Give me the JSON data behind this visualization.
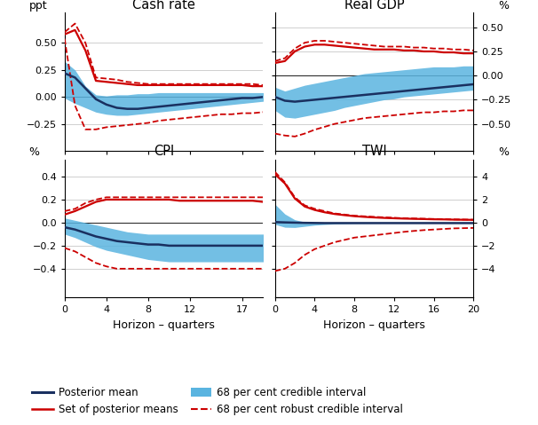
{
  "cash_rate": {
    "title": "Cash rate",
    "ylabel_left": "ppt",
    "x": [
      0,
      1,
      2,
      3,
      4,
      5,
      6,
      7,
      8,
      9,
      10,
      11,
      12,
      13,
      14,
      15,
      16,
      17,
      18,
      19,
      20
    ],
    "posterior_mean": [
      0.22,
      0.18,
      0.08,
      -0.02,
      -0.07,
      -0.1,
      -0.11,
      -0.11,
      -0.1,
      -0.09,
      -0.08,
      -0.07,
      -0.06,
      -0.05,
      -0.04,
      -0.03,
      -0.02,
      -0.01,
      -0.01,
      0.0,
      0.0
    ],
    "ci_upper": [
      0.33,
      0.25,
      0.1,
      0.02,
      0.01,
      0.02,
      0.02,
      0.03,
      0.03,
      0.04,
      0.04,
      0.04,
      0.04,
      0.04,
      0.04,
      0.04,
      0.04,
      0.04,
      0.04,
      0.04,
      0.04
    ],
    "ci_lower": [
      -0.01,
      -0.06,
      -0.1,
      -0.14,
      -0.16,
      -0.17,
      -0.17,
      -0.16,
      -0.15,
      -0.14,
      -0.13,
      -0.12,
      -0.11,
      -0.1,
      -0.09,
      -0.08,
      -0.07,
      -0.06,
      -0.05,
      -0.04,
      -0.03
    ],
    "robust_upper": [
      0.6,
      0.68,
      0.5,
      0.18,
      0.17,
      0.16,
      0.14,
      0.13,
      0.12,
      0.12,
      0.12,
      0.12,
      0.12,
      0.12,
      0.12,
      0.12,
      0.12,
      0.12,
      0.12,
      0.11,
      0.11
    ],
    "robust_lower": [
      0.54,
      -0.08,
      -0.3,
      -0.3,
      -0.28,
      -0.27,
      -0.26,
      -0.25,
      -0.24,
      -0.22,
      -0.21,
      -0.2,
      -0.19,
      -0.18,
      -0.17,
      -0.16,
      -0.16,
      -0.15,
      -0.15,
      -0.14,
      -0.14
    ],
    "set_means": [
      0.58,
      0.62,
      0.43,
      0.15,
      0.14,
      0.13,
      0.12,
      0.11,
      0.11,
      0.11,
      0.11,
      0.11,
      0.11,
      0.11,
      0.11,
      0.11,
      0.11,
      0.11,
      0.1,
      0.1,
      0.1
    ],
    "ylim": [
      -0.5,
      0.78
    ],
    "yticks": [
      -0.25,
      0.0,
      0.25,
      0.5
    ],
    "xlim": [
      0,
      19
    ],
    "xticks": [
      0,
      4,
      8,
      12,
      17
    ]
  },
  "real_gdp": {
    "title": "Real GDP",
    "ylabel_right": "%",
    "x": [
      0,
      1,
      2,
      3,
      4,
      5,
      6,
      7,
      8,
      9,
      10,
      11,
      12,
      13,
      14,
      15,
      16,
      17,
      18,
      19,
      20
    ],
    "posterior_mean": [
      -0.22,
      -0.26,
      -0.27,
      -0.26,
      -0.25,
      -0.24,
      -0.23,
      -0.22,
      -0.21,
      -0.2,
      -0.19,
      -0.18,
      -0.17,
      -0.16,
      -0.15,
      -0.14,
      -0.13,
      -0.12,
      -0.11,
      -0.1,
      -0.09
    ],
    "ci_upper": [
      -0.12,
      -0.16,
      -0.13,
      -0.1,
      -0.08,
      -0.06,
      -0.04,
      -0.02,
      0.0,
      0.02,
      0.03,
      0.04,
      0.05,
      0.06,
      0.07,
      0.08,
      0.09,
      0.09,
      0.09,
      0.1,
      0.1
    ],
    "ci_lower": [
      -0.36,
      -0.43,
      -0.44,
      -0.42,
      -0.4,
      -0.38,
      -0.36,
      -0.33,
      -0.31,
      -0.29,
      -0.27,
      -0.25,
      -0.24,
      -0.22,
      -0.21,
      -0.2,
      -0.19,
      -0.18,
      -0.17,
      -0.16,
      -0.15
    ],
    "robust_upper": [
      0.15,
      0.18,
      0.28,
      0.34,
      0.36,
      0.36,
      0.35,
      0.34,
      0.33,
      0.32,
      0.31,
      0.3,
      0.3,
      0.3,
      0.29,
      0.29,
      0.28,
      0.28,
      0.27,
      0.27,
      0.26
    ],
    "robust_lower": [
      -0.6,
      -0.62,
      -0.63,
      -0.6,
      -0.56,
      -0.53,
      -0.5,
      -0.48,
      -0.46,
      -0.44,
      -0.43,
      -0.42,
      -0.41,
      -0.4,
      -0.39,
      -0.38,
      -0.38,
      -0.37,
      -0.37,
      -0.36,
      -0.36
    ],
    "set_means": [
      0.13,
      0.15,
      0.25,
      0.3,
      0.32,
      0.32,
      0.31,
      0.3,
      0.29,
      0.28,
      0.27,
      0.27,
      0.27,
      0.26,
      0.26,
      0.25,
      0.25,
      0.24,
      0.24,
      0.23,
      0.23
    ],
    "ylim": [
      -0.78,
      0.65
    ],
    "yticks": [
      -0.5,
      -0.25,
      0.0,
      0.25,
      0.5
    ],
    "xlim": [
      0,
      20
    ],
    "xticks": [
      0,
      4,
      8,
      12,
      16,
      20
    ]
  },
  "cpi": {
    "title": "CPI",
    "ylabel_left": "%",
    "x": [
      0,
      1,
      2,
      3,
      4,
      5,
      6,
      7,
      8,
      9,
      10,
      11,
      12,
      13,
      14,
      15,
      16,
      17,
      18,
      19,
      20
    ],
    "posterior_mean": [
      -0.04,
      -0.06,
      -0.09,
      -0.12,
      -0.14,
      -0.16,
      -0.17,
      -0.18,
      -0.19,
      -0.19,
      -0.2,
      -0.2,
      -0.2,
      -0.2,
      -0.2,
      -0.2,
      -0.2,
      -0.2,
      -0.2,
      -0.2,
      -0.2
    ],
    "ci_upper": [
      0.04,
      0.02,
      0.0,
      -0.02,
      -0.04,
      -0.06,
      -0.08,
      -0.09,
      -0.1,
      -0.1,
      -0.1,
      -0.1,
      -0.1,
      -0.1,
      -0.1,
      -0.1,
      -0.1,
      -0.1,
      -0.1,
      -0.1,
      -0.1
    ],
    "ci_lower": [
      -0.1,
      -0.13,
      -0.17,
      -0.21,
      -0.24,
      -0.26,
      -0.28,
      -0.3,
      -0.32,
      -0.33,
      -0.34,
      -0.34,
      -0.34,
      -0.34,
      -0.34,
      -0.34,
      -0.34,
      -0.34,
      -0.34,
      -0.34,
      -0.34
    ],
    "robust_upper": [
      0.1,
      0.12,
      0.17,
      0.2,
      0.22,
      0.22,
      0.22,
      0.22,
      0.22,
      0.22,
      0.22,
      0.22,
      0.22,
      0.22,
      0.22,
      0.22,
      0.22,
      0.22,
      0.22,
      0.22,
      0.22
    ],
    "robust_lower": [
      -0.22,
      -0.25,
      -0.3,
      -0.35,
      -0.38,
      -0.4,
      -0.4,
      -0.4,
      -0.4,
      -0.4,
      -0.4,
      -0.4,
      -0.4,
      -0.4,
      -0.4,
      -0.4,
      -0.4,
      -0.4,
      -0.4,
      -0.4,
      -0.4
    ],
    "set_means": [
      0.07,
      0.1,
      0.14,
      0.18,
      0.2,
      0.2,
      0.2,
      0.2,
      0.2,
      0.2,
      0.2,
      0.19,
      0.19,
      0.19,
      0.19,
      0.19,
      0.19,
      0.19,
      0.19,
      0.18,
      0.18
    ],
    "ylim": [
      -0.65,
      0.55
    ],
    "yticks": [
      -0.4,
      -0.2,
      0.0,
      0.2,
      0.4
    ],
    "xlim": [
      0,
      19
    ],
    "xticks": [
      0,
      4,
      8,
      12,
      17
    ]
  },
  "twi": {
    "title": "TWI",
    "ylabel_right": "%",
    "x": [
      0,
      1,
      2,
      3,
      4,
      5,
      6,
      7,
      8,
      9,
      10,
      11,
      12,
      13,
      14,
      15,
      16,
      17,
      18,
      19,
      20
    ],
    "posterior_mean": [
      0.05,
      0.02,
      0.0,
      -0.02,
      -0.03,
      -0.04,
      -0.04,
      -0.04,
      -0.04,
      -0.04,
      -0.04,
      -0.04,
      -0.04,
      -0.04,
      -0.04,
      -0.04,
      -0.04,
      -0.04,
      -0.04,
      -0.04,
      -0.04
    ],
    "ci_upper": [
      1.6,
      0.75,
      0.25,
      0.06,
      0.02,
      0.01,
      0.01,
      0.01,
      0.01,
      0.01,
      0.01,
      0.01,
      0.01,
      0.01,
      0.01,
      0.01,
      0.01,
      0.01,
      0.01,
      0.01,
      0.01
    ],
    "ci_lower": [
      -0.15,
      -0.4,
      -0.42,
      -0.32,
      -0.22,
      -0.16,
      -0.12,
      -0.1,
      -0.08,
      -0.07,
      -0.06,
      -0.05,
      -0.05,
      -0.05,
      -0.05,
      -0.05,
      -0.04,
      -0.04,
      -0.04,
      -0.04,
      -0.04
    ],
    "robust_upper": [
      4.4,
      3.5,
      2.2,
      1.5,
      1.2,
      1.0,
      0.8,
      0.7,
      0.6,
      0.55,
      0.5,
      0.46,
      0.42,
      0.38,
      0.36,
      0.34,
      0.32,
      0.3,
      0.28,
      0.27,
      0.25
    ],
    "robust_lower": [
      -4.2,
      -4.0,
      -3.5,
      -2.8,
      -2.3,
      -2.0,
      -1.7,
      -1.5,
      -1.3,
      -1.2,
      -1.1,
      -1.0,
      -0.9,
      -0.8,
      -0.72,
      -0.65,
      -0.6,
      -0.55,
      -0.5,
      -0.48,
      -0.46
    ],
    "set_means": [
      4.2,
      3.4,
      2.1,
      1.4,
      1.1,
      0.9,
      0.75,
      0.65,
      0.56,
      0.5,
      0.45,
      0.41,
      0.38,
      0.35,
      0.33,
      0.31,
      0.29,
      0.28,
      0.26,
      0.25,
      0.24
    ],
    "ylim": [
      -6.5,
      5.5
    ],
    "yticks": [
      -4,
      -2,
      0,
      2,
      4
    ],
    "xlim": [
      0,
      20
    ],
    "xticks": [
      0,
      4,
      8,
      12,
      16,
      20
    ]
  },
  "colors": {
    "posterior_mean": "#1a3060",
    "set_means": "#cc0000",
    "fill": "#5ab4e0"
  },
  "xlabel": "Horizon – quarters",
  "legend": [
    {
      "label": "Posterior mean",
      "type": "line",
      "color": "#1a3060",
      "ls": "-",
      "lw": 2.2
    },
    {
      "label": "Set of posterior means",
      "type": "line",
      "color": "#cc0000",
      "ls": "-",
      "lw": 1.8
    },
    {
      "label": "68 per cent credible interval",
      "type": "patch",
      "color": "#5ab4e0"
    },
    {
      "label": "68 per cent robust credible interval",
      "type": "line",
      "color": "#cc0000",
      "ls": "--",
      "lw": 1.5
    }
  ]
}
